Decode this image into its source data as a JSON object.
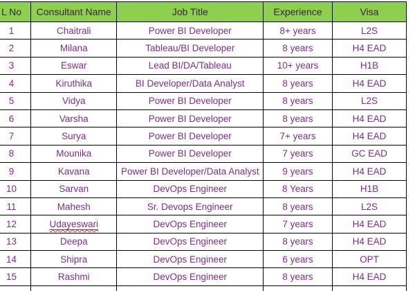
{
  "table": {
    "columns": [
      {
        "id": "no",
        "label": "L No"
      },
      {
        "id": "name",
        "label": "Consultant Name"
      },
      {
        "id": "job",
        "label": "Job Title"
      },
      {
        "id": "experience",
        "label": "Experience"
      },
      {
        "id": "visa",
        "label": "Visa"
      }
    ],
    "rows": [
      {
        "no": "1",
        "name": "Chaitrali",
        "job": "Power BI Developer",
        "experience": "8+ years",
        "visa": "L2S",
        "name_misspelled": false
      },
      {
        "no": "2",
        "name": "Milana",
        "job": "Tableau/BI Developer",
        "experience": "8 years",
        "visa": "H4 EAD",
        "name_misspelled": false
      },
      {
        "no": "3",
        "name": "Eswar",
        "job": "Lead BI/DA/Tableau",
        "experience": "10+ years",
        "visa": "H1B",
        "name_misspelled": false
      },
      {
        "no": "4",
        "name": "Kiruthika",
        "job": "BI Developer/Data Analyst",
        "experience": "8 years",
        "visa": "H4 EAD",
        "name_misspelled": false
      },
      {
        "no": "5",
        "name": "Vidya",
        "job": "Power BI Developer",
        "experience": "8 years",
        "visa": "L2S",
        "name_misspelled": false
      },
      {
        "no": "6",
        "name": "Varsha",
        "job": "Power BI Developer",
        "experience": "8 years",
        "visa": "H4 EAD",
        "name_misspelled": false
      },
      {
        "no": "7",
        "name": "Surya",
        "job": "Power BI Developer",
        "experience": "7+ years",
        "visa": "H4 EAD",
        "name_misspelled": false
      },
      {
        "no": "8",
        "name": "Mounika",
        "job": "Power BI Developer",
        "experience": "7 years",
        "visa": "GC EAD",
        "name_misspelled": false
      },
      {
        "no": "9",
        "name": "Kavana",
        "job": "Power BI Developer/Data Analyst",
        "experience": "9 years",
        "visa": "H4 EAD",
        "name_misspelled": false
      },
      {
        "no": "10",
        "name": "Sarvan",
        "job": "DevOps Engineer",
        "experience": "8 Years",
        "visa": "H1B",
        "name_misspelled": false
      },
      {
        "no": "11",
        "name": "Mahesh",
        "job": "Sr. Devops Engineer",
        "experience": "8 years",
        "visa": "L2S",
        "name_misspelled": false
      },
      {
        "no": "12",
        "name": "Udayeswari",
        "job": "DevOps Engineer",
        "experience": "7 years",
        "visa": "H4 EAD",
        "name_misspelled": true
      },
      {
        "no": "13",
        "name": "Deepa",
        "job": "DevOps Engineer",
        "experience": "8 years",
        "visa": "H4 EAD",
        "name_misspelled": false
      },
      {
        "no": "14",
        "name": "Shipra",
        "job": "DevOps Engineer",
        "experience": "6 years",
        "visa": "OPT",
        "name_misspelled": false
      },
      {
        "no": "15",
        "name": "Rashmi",
        "job": "DevOps Engineer",
        "experience": "8 years",
        "visa": "H4 EAD",
        "name_misspelled": false
      }
    ]
  },
  "colors": {
    "header_bg": "#8DCF4E",
    "header_text": "#3D2537",
    "body_text": "#7C2E8A",
    "grid_border": "#000000",
    "spellcheck_underline": "#E03C31"
  }
}
